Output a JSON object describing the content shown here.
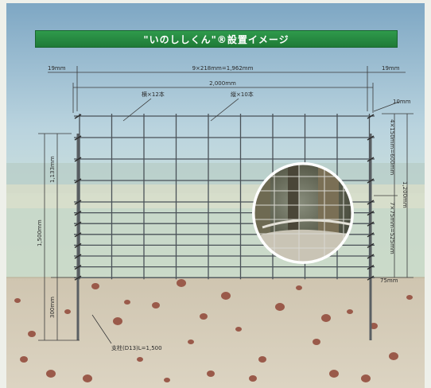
{
  "title": "\"いのししくん\"®設置イメージ",
  "dimensions": {
    "left_margin": "19mm",
    "right_margin": "19mm",
    "mesh_width": "9×218mm=1,962mm",
    "total_width": "2,000mm",
    "horizontal_wires": "横×12本",
    "vertical_wires": "縦×10本",
    "top_gap": "10mm",
    "upper_rows": "4×150mm=600mm",
    "lower_rows": "7×75mm=525mm",
    "mesh_height": "1,200mm",
    "bottom_gap": "75mm",
    "stake_height": "1,133mm",
    "stake_total": "1,500mm",
    "stake_buried": "300mm",
    "stake_label": "支柱(D13)L=1,500"
  },
  "colors": {
    "title_bg": "#2a8c45",
    "wire": "#4a5258",
    "dimension_line": "#3a3a3a",
    "soil": "#d6cdbb",
    "stone": "#9a5a4a",
    "sky_top": "#7ea7c4",
    "sky_bottom": "#c9dde4"
  }
}
